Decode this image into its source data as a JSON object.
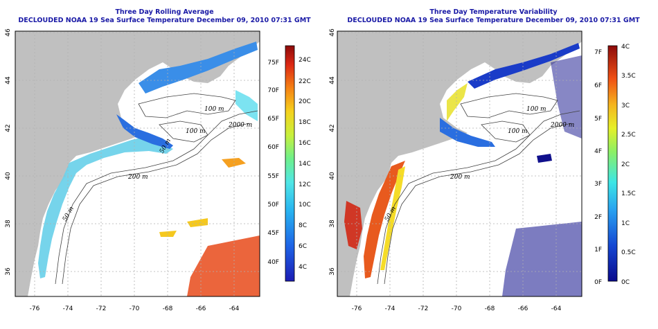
{
  "maps": [
    {
      "title": "Three Day Rolling Average",
      "subtitle": "DECLOUDED NOAA 19 Sea Surface Temperature December 09, 2010 07:31 GMT",
      "x_ticks": [
        "-76",
        "-74",
        "-72",
        "-70",
        "-68",
        "-66",
        "-64"
      ],
      "y_ticks": [
        "46",
        "44",
        "42",
        "40",
        "38",
        "36"
      ],
      "contour_labels": [
        "100 m",
        "2000 m",
        "100 m",
        "200 m",
        "50 m",
        "50 m"
      ],
      "colorbar": {
        "left_labels": [
          "75F",
          "70F",
          "65F",
          "60F",
          "55F",
          "50F",
          "45F",
          "40F"
        ],
        "right_labels": [
          "24C",
          "22C",
          "20C",
          "18C",
          "16C",
          "14C",
          "12C",
          "10C",
          "8C",
          "6C",
          "4C"
        ]
      }
    },
    {
      "title": "Three Day Temperature Variability",
      "subtitle": "DECLOUDED NOAA 19 Sea Surface Temperature December 09, 2010 07:31 GMT",
      "x_ticks": [
        "-76",
        "-74",
        "-72",
        "-70",
        "-68",
        "-66",
        "-64"
      ],
      "y_ticks": [
        "46",
        "44",
        "42",
        "40",
        "38",
        "36"
      ],
      "contour_labels": [
        "100 m",
        "2000 m",
        "100 m",
        "200 m",
        "50 m"
      ],
      "colorbar": {
        "left_labels": [
          "7F",
          "6F",
          "5F",
          "4F",
          "3F",
          "2F",
          "1F",
          "0F"
        ],
        "right_labels": [
          "4C",
          "3.5C",
          "3C",
          "2.5C",
          "2C",
          "1.5C",
          "1C",
          "0.5C",
          "0C"
        ]
      }
    }
  ],
  "colors": {
    "land": "#c0c0c0",
    "title": "#1a1aa6",
    "grid": "#b0b0b0",
    "contour": "#404040"
  }
}
